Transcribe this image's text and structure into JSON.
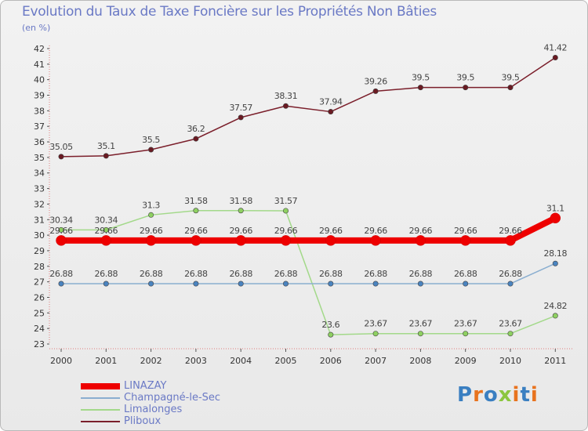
{
  "chart_data": {
    "type": "line",
    "title": "Evolution du Taux de Taxe Foncière sur les Propriétés Non Bâties",
    "ylabel": "(en %)",
    "xlabel": "",
    "categories": [
      "2000",
      "2001",
      "2002",
      "2003",
      "2004",
      "2005",
      "2006",
      "2007",
      "2008",
      "2009",
      "2010",
      "2011"
    ],
    "ylim": [
      23,
      42
    ],
    "yticks": [
      "23",
      "24",
      "25",
      "26",
      "27",
      "28",
      "29",
      "30",
      "31",
      "32",
      "33",
      "34",
      "35",
      "36",
      "37",
      "38",
      "39",
      "40",
      "41",
      "42"
    ],
    "series": [
      {
        "name": "Pliboux",
        "color": "#7b1f2b",
        "marker": "#6a1a22",
        "values": [
          35.05,
          35.1,
          35.5,
          36.2,
          37.57,
          38.31,
          37.94,
          39.26,
          39.5,
          39.5,
          39.5,
          41.42
        ],
        "labels": [
          "35.05",
          "35.1",
          "35.5",
          "36.2",
          "37.57",
          "38.31",
          "37.94",
          "39.26",
          "39.5",
          "39.5",
          "39.5",
          "41.42"
        ]
      },
      {
        "name": "Limalonges",
        "color": "#a3d98a",
        "marker": "#8ed061",
        "values": [
          30.34,
          30.34,
          31.3,
          31.58,
          31.58,
          31.57,
          23.6,
          23.67,
          23.67,
          23.67,
          23.67,
          24.82
        ],
        "labels": [
          "30.34",
          "30.34",
          "31.3",
          "31.58",
          "31.58",
          "31.57",
          "23.6",
          "23.67",
          "23.67",
          "23.67",
          "23.67",
          "24.82"
        ]
      },
      {
        "name": "Champagné-le-Sec",
        "color": "#8aaed0",
        "marker": "#4a84c0",
        "values": [
          26.88,
          26.88,
          26.88,
          26.88,
          26.88,
          26.88,
          26.88,
          26.88,
          26.88,
          26.88,
          26.88,
          28.18
        ],
        "labels": [
          "26.88",
          "26.88",
          "26.88",
          "26.88",
          "26.88",
          "26.88",
          "26.88",
          "26.88",
          "26.88",
          "26.88",
          "26.88",
          "28.18"
        ]
      },
      {
        "name": "LINAZAY",
        "color": "#ee0000",
        "marker": "#ee0000",
        "values": [
          29.66,
          29.66,
          29.66,
          29.66,
          29.66,
          29.66,
          29.66,
          29.66,
          29.66,
          29.66,
          29.66,
          31.1
        ],
        "labels": [
          "29.66",
          "29.66",
          "29.66",
          "29.66",
          "29.66",
          "29.66",
          "29.66",
          "29.66",
          "29.66",
          "29.66",
          "29.66",
          "31.1"
        ]
      }
    ],
    "legend": [
      {
        "name": "LINAZAY",
        "color": "#ee0000"
      },
      {
        "name": "Champagné-le-Sec",
        "color": "#8aaed0"
      },
      {
        "name": "Limalonges",
        "color": "#a3d98a"
      },
      {
        "name": "Pliboux",
        "color": "#7b1f2b"
      }
    ],
    "legend_position": "bottom-left"
  },
  "brand": {
    "letters": [
      "P",
      "r",
      "o",
      "x",
      "i",
      "t",
      "i"
    ],
    "colors": [
      "#3a7fc1",
      "#e8731e",
      "#3a7fc1",
      "#8cc63f",
      "#e8731e",
      "#3a7fc1",
      "#e8731e"
    ]
  }
}
